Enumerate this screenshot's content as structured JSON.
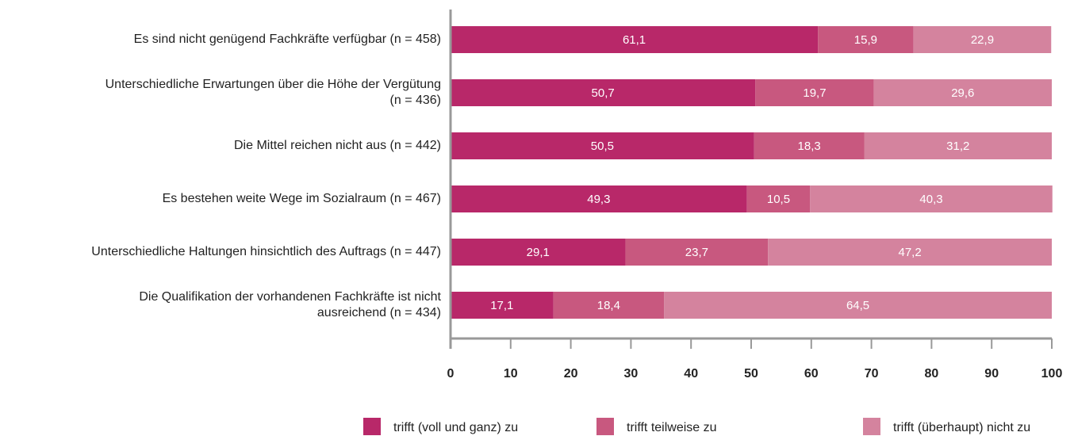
{
  "chart_data": {
    "type": "stacked_barh",
    "categories": [
      "Es sind nicht genügend Fachkräfte verfügbar (n = 458)",
      "Unterschiedliche Erwartungen über die Höhe der Vergütung\n(n = 436)",
      "Die Mittel reichen nicht aus (n = 442)",
      "Es bestehen weite Wege im Sozialraum (n = 467)",
      "Unterschiedliche Haltungen hinsichtlich des Auftrags (n = 447)",
      "Die Qualifikation der vorhandenen Fachkräfte ist nicht\nausreichend (n = 434)"
    ],
    "series": [
      {
        "name": "trifft (voll und ganz) zu",
        "color": "#b82869",
        "values": [
          61.1,
          50.7,
          50.5,
          49.3,
          29.1,
          17.1
        ],
        "value_labels": [
          "61,1",
          "50,7",
          "50,5",
          "49,3",
          "29,1",
          "17,1"
        ]
      },
      {
        "name": "trifft teilweise zu",
        "color": "#c8587f",
        "values": [
          15.9,
          19.7,
          18.3,
          10.5,
          23.7,
          18.4
        ],
        "value_labels": [
          "15,9",
          "19,7",
          "18,3",
          "10,5",
          "23,7",
          "18,4"
        ]
      },
      {
        "name": "trifft (überhaupt) nicht zu",
        "color": "#d4839e",
        "values": [
          22.9,
          29.6,
          31.2,
          40.3,
          47.2,
          64.5
        ],
        "value_labels": [
          "22,9",
          "29,6",
          "31,2",
          "40,3",
          "47,2",
          "64,5"
        ]
      }
    ],
    "xlim": [
      0,
      100
    ],
    "xticks": [
      0,
      10,
      20,
      30,
      40,
      50,
      60,
      70,
      80,
      90,
      100
    ]
  }
}
